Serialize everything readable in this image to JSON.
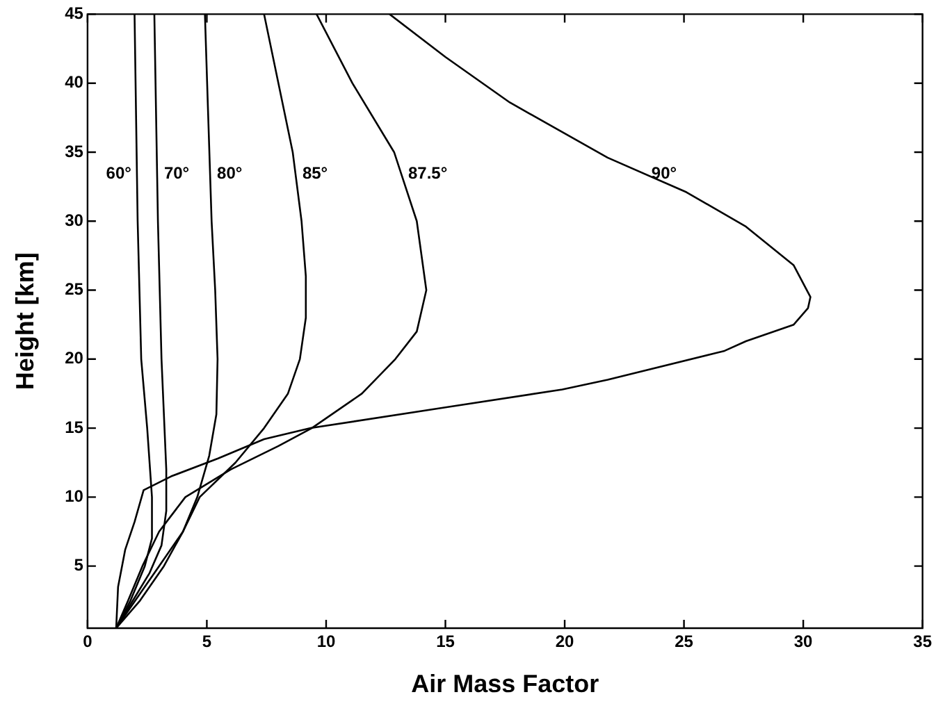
{
  "chart_data": {
    "type": "line",
    "xlabel": "Air Mass Factor",
    "ylabel": "Height [km]",
    "xlim": [
      0,
      35
    ],
    "ylim": [
      0.5,
      45
    ],
    "xticks": [
      0,
      5,
      10,
      15,
      20,
      25,
      30,
      35
    ],
    "yticks": [
      5,
      10,
      15,
      20,
      25,
      30,
      35,
      40,
      45
    ],
    "grid": false,
    "legend": false,
    "marker": "none",
    "line_style": "solid",
    "series": [
      {
        "name": "60°",
        "color": "#000000",
        "x": [
          1.2,
          1.8,
          2.4,
          2.7,
          2.7,
          2.5,
          2.25,
          2.1,
          1.97
        ],
        "values": [
          0.5,
          2.5,
          5,
          7,
          10,
          15,
          20,
          30,
          45
        ]
      },
      {
        "name": "70°",
        "color": "#000000",
        "x": [
          1.2,
          1.9,
          2.6,
          3.1,
          3.3,
          3.3,
          3.1,
          2.95,
          2.8
        ],
        "values": [
          0.5,
          2.5,
          4.5,
          6.5,
          9,
          12,
          20,
          30,
          45
        ]
      },
      {
        "name": "80°",
        "color": "#000000",
        "x": [
          1.2,
          2.2,
          3.2,
          4,
          4.6,
          5.1,
          5.4,
          5.45,
          5.35,
          5.2,
          5.05,
          4.92
        ],
        "values": [
          0.5,
          2.5,
          5,
          7.5,
          10,
          13,
          16,
          20,
          25,
          30,
          38,
          45
        ]
      },
      {
        "name": "85°",
        "color": "#000000",
        "x": [
          1.2,
          2,
          3,
          4,
          4.7,
          6.2,
          7.4,
          8.4,
          8.9,
          9.15,
          9.15,
          8.97,
          8.6,
          8.0,
          7.4
        ],
        "values": [
          0.5,
          2.5,
          5,
          7.5,
          10,
          12.5,
          15,
          17.5,
          20,
          23,
          26,
          30,
          35,
          40,
          45
        ]
      },
      {
        "name": "87.5°",
        "color": "#000000",
        "x": [
          1.2,
          1.7,
          2.3,
          3,
          4.1,
          6,
          8,
          9.4,
          11.5,
          12.9,
          13.8,
          14.2,
          13.8,
          12.85,
          11.1,
          9.6
        ],
        "values": [
          0.5,
          2.5,
          5,
          7.5,
          10,
          12,
          13.7,
          15,
          17.5,
          20,
          22,
          25,
          30,
          35,
          40,
          45
        ]
      },
      {
        "name": "90°",
        "color": "#000000",
        "x": [
          1.2,
          1.28,
          1.58,
          1.97,
          2.35,
          3.5,
          5.47,
          7.4,
          9.35,
          15,
          19.9,
          21.8,
          26.7,
          27.6,
          29.6,
          30.2,
          30.3,
          29.6,
          27.6,
          25.1,
          21.8,
          17.7,
          15,
          12.66
        ],
        "values": [
          0.5,
          3.5,
          6.2,
          8.2,
          10.5,
          11.5,
          12.8,
          14.2,
          15,
          16.5,
          17.8,
          18.5,
          20.6,
          21.3,
          22.5,
          23.7,
          24.5,
          26.8,
          29.6,
          32.1,
          34.6,
          38.6,
          41.9,
          45
        ]
      }
    ]
  }
}
